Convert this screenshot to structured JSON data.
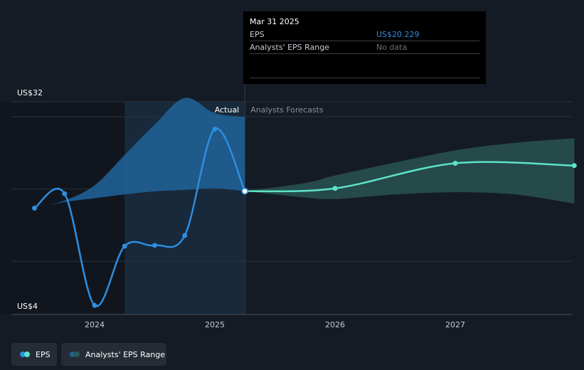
{
  "chart_data": {
    "type": "line",
    "ylim": [
      4,
      32
    ],
    "y_ticks": [
      {
        "value": 32,
        "label": "US$32"
      },
      {
        "value": 4,
        "label": "US$4"
      }
    ],
    "x_ticks": [
      {
        "value": 2024.0,
        "label": "2024"
      },
      {
        "value": 2025.0,
        "label": "2025"
      },
      {
        "value": 2026.0,
        "label": "2026"
      },
      {
        "value": 2027.0,
        "label": "2027"
      }
    ],
    "divider_x": 2025.25,
    "region_labels": {
      "actual": "Actual",
      "forecast": "Analysts Forecasts"
    },
    "series": [
      {
        "name": "EPS",
        "kind": "actual",
        "x": [
          2023.5,
          2023.75,
          2024.0,
          2024.25,
          2024.5,
          2024.75,
          2025.0,
          2025.25
        ],
        "values": [
          18.0,
          19.9,
          5.2,
          13.0,
          13.1,
          14.4,
          28.4,
          20.229
        ]
      },
      {
        "name": "EPS",
        "kind": "forecast",
        "x": [
          2025.25,
          2026.0,
          2027.0,
          2027.99
        ],
        "values": [
          20.229,
          20.6,
          23.9,
          23.6
        ]
      }
    ],
    "actual_range": {
      "x": [
        2023.5,
        2023.75,
        2024.0,
        2024.25,
        2024.5,
        2024.75,
        2025.0,
        2025.25
      ],
      "upper": [
        18.0,
        19.0,
        21.0,
        25.0,
        29.0,
        32.5,
        30.5,
        30.0
      ],
      "lower": [
        18.0,
        18.8,
        19.3,
        19.8,
        20.2,
        20.4,
        20.6,
        20.229
      ]
    },
    "forecast_range": {
      "x": [
        2025.25,
        2025.75,
        2026.0,
        2026.5,
        2027.0,
        2027.5,
        2027.99
      ],
      "upper": [
        20.229,
        21.3,
        22.3,
        24.0,
        25.6,
        26.6,
        27.2
      ],
      "lower": [
        20.229,
        19.4,
        19.2,
        19.8,
        20.1,
        19.8,
        18.6
      ]
    },
    "colors": {
      "background": "#151b24",
      "eps": "#2e8ee0",
      "forecast": "#5de3c8",
      "actual_band": "#1f5f93",
      "forecast_band": "#2b5b55",
      "grid": "#2b323c",
      "highlight": "#17293b"
    }
  },
  "tooltip": {
    "date": "Mar 31 2025",
    "eps_label": "EPS",
    "eps_value": "US$20.229",
    "range_label": "Analysts' EPS Range",
    "range_value": "No data"
  },
  "legend": {
    "eps": "EPS",
    "range": "Analysts' EPS Range"
  }
}
